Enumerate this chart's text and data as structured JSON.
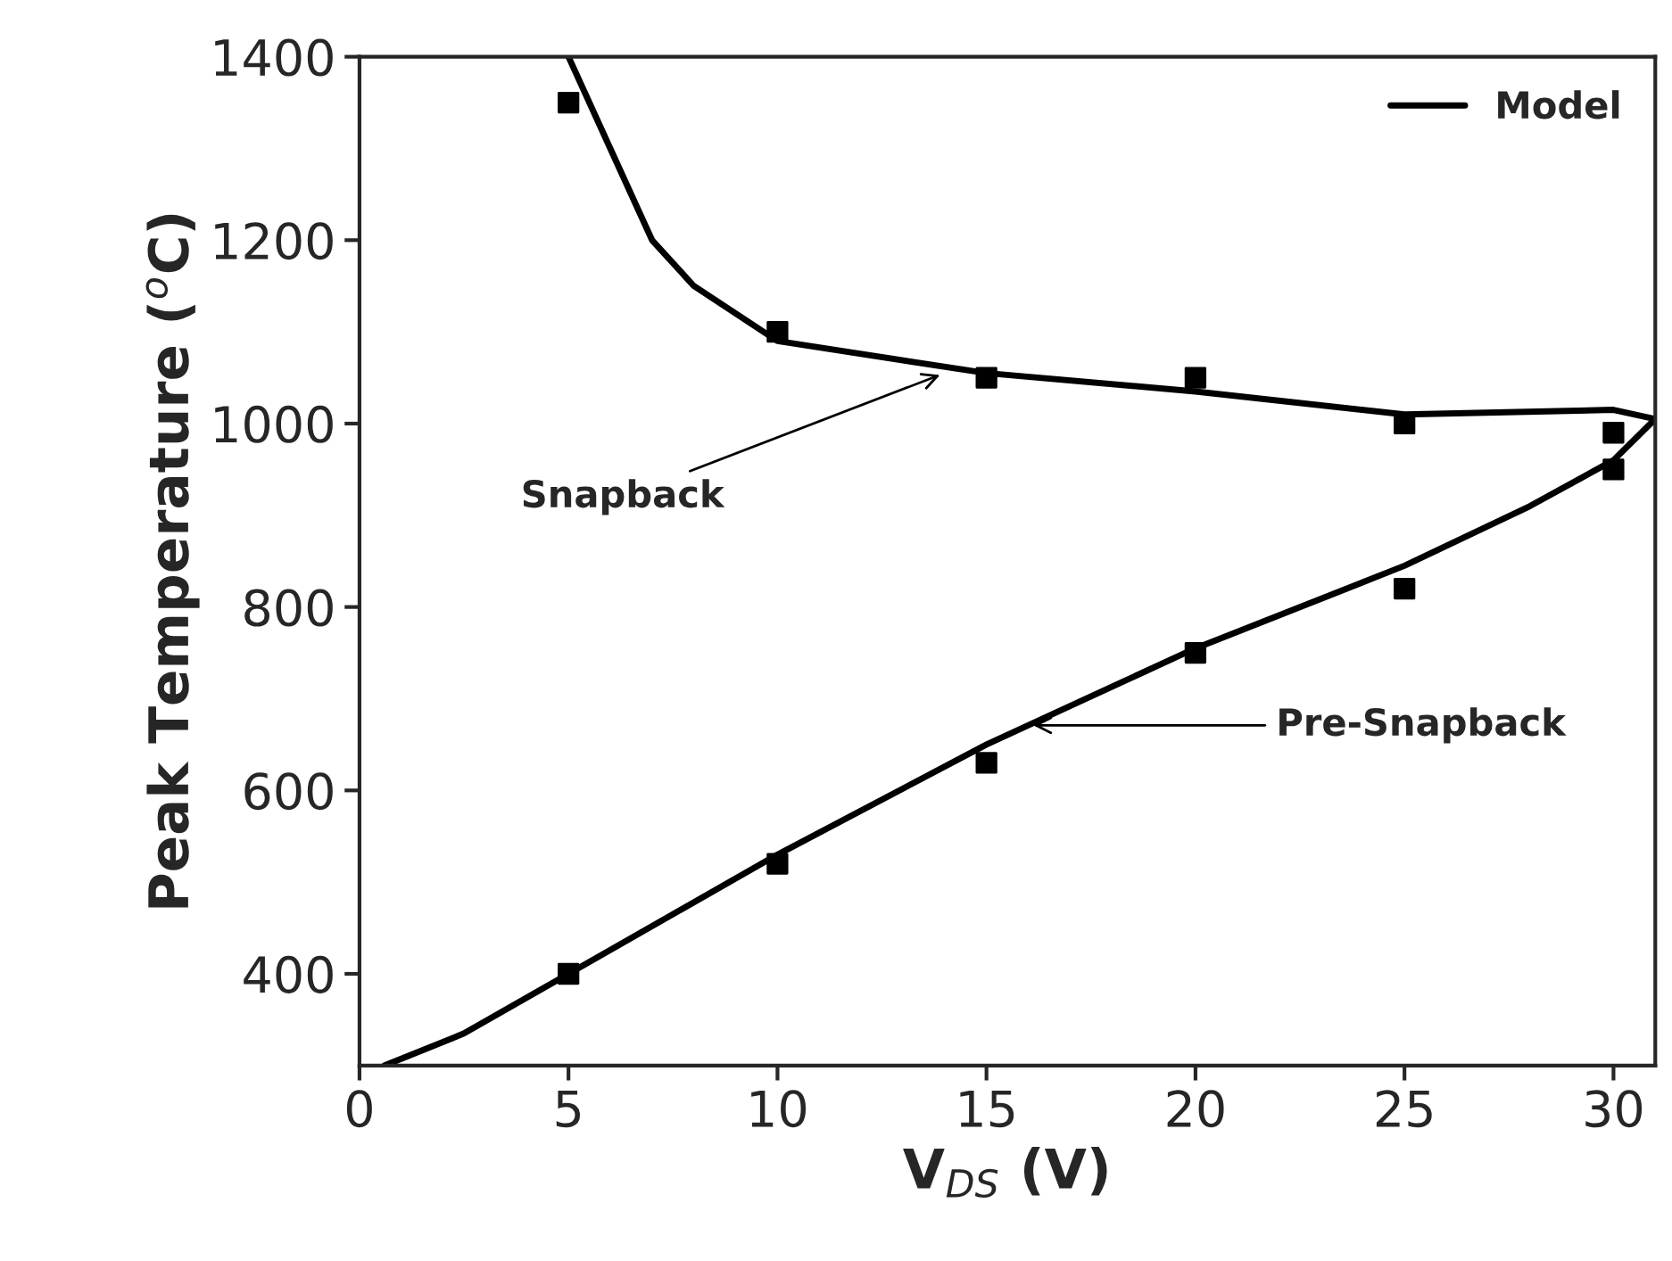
{
  "chart_data": {
    "type": "line",
    "xlabel": "V$_{DS}$ (V)",
    "ylabel": "Peak Temperature ($^{o}$C)",
    "xlim": [
      0,
      31
    ],
    "xticks": [
      0,
      5,
      10,
      15,
      20,
      25,
      30
    ],
    "ylim": [
      300,
      1400
    ],
    "yticks": [
      400,
      600,
      800,
      1000,
      1200,
      1400
    ],
    "grid": false,
    "legend": "top right",
    "series": [
      {
        "name": "Model",
        "color": "#000000",
        "marker": "none",
        "line_style": "solid",
        "x": [
          0.6,
          2.5,
          5,
          10,
          15,
          20,
          25,
          28,
          30,
          31,
          30,
          25,
          20,
          15,
          10,
          8,
          7,
          6,
          5
        ],
        "values": [
          300,
          335,
          400,
          530,
          650,
          755,
          845,
          910,
          960,
          1005,
          1015,
          1010,
          1035,
          1055,
          1090,
          1150,
          1200,
          1300,
          1400
        ]
      },
      {
        "type": "scatter",
        "color": "#000000",
        "marker": "square",
        "x": [
          5,
          10,
          15,
          20,
          25,
          30,
          5,
          10,
          15,
          20,
          25,
          30
        ],
        "values": [
          400,
          520,
          630,
          750,
          820,
          950,
          1350,
          1100,
          1050,
          1050,
          1000,
          990
        ]
      }
    ],
    "annotations": [
      {
        "text": "Snapback",
        "x": 14,
        "y": 1055
      },
      {
        "text": "Pre-Snapback",
        "x": 16,
        "y": 671
      }
    ]
  }
}
